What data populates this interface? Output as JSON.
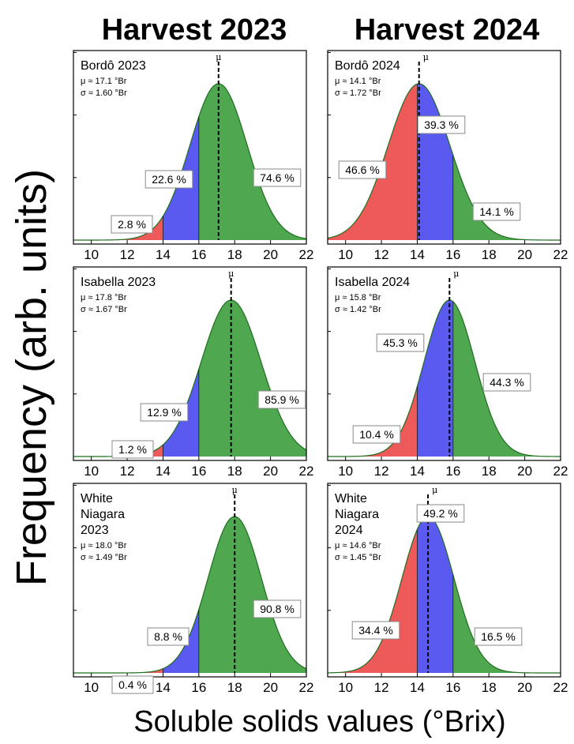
{
  "col_titles": [
    "Harvest 2023",
    "Harvest 2024"
  ],
  "ylabel": "Frequency (arb. units)",
  "xlabel": "Soluble solids values (°Brix)",
  "colors": {
    "low": "#ee5a5a",
    "mid": "#5a5af0",
    "high": "#4fa84f",
    "outline": "#1e6e1e"
  },
  "chart_data": [
    {
      "type": "area",
      "title": "Bordô 2023",
      "mu_text": "μ ≈ 17.1 °Br",
      "sigma_text": "σ ≈ 1.60 °Br",
      "mu": 17.1,
      "sigma": 1.6,
      "xlim": [
        9,
        22
      ],
      "xticks": [
        "10",
        "12",
        "14",
        "16",
        "18",
        "20",
        "22"
      ],
      "thresholds": [
        14,
        16
      ],
      "mu_label": "μ",
      "percentages": [
        "2.8 %",
        "22.6 %",
        "74.6 %"
      ]
    },
    {
      "type": "area",
      "title": "Bordô 2024",
      "mu_text": "μ ≈ 14.1 °Br",
      "sigma_text": "σ ≈ 1.72 °Br",
      "mu": 14.1,
      "sigma": 1.72,
      "xlim": [
        9,
        22
      ],
      "xticks": [
        "10",
        "12",
        "14",
        "16",
        "18",
        "20",
        "22"
      ],
      "thresholds": [
        14,
        16
      ],
      "mu_label": "μ",
      "percentages": [
        "46.6 %",
        "39.3 %",
        "14.1 %"
      ]
    },
    {
      "type": "area",
      "title": "Isabella 2023",
      "mu_text": "μ ≈ 17.8 °Br",
      "sigma_text": "σ ≈ 1.67 °Br",
      "mu": 17.8,
      "sigma": 1.67,
      "xlim": [
        9,
        22
      ],
      "xticks": [
        "10",
        "12",
        "14",
        "16",
        "18",
        "20",
        "22"
      ],
      "thresholds": [
        14,
        16
      ],
      "mu_label": "μ",
      "percentages": [
        "1.2 %",
        "12.9 %",
        "85.9 %"
      ]
    },
    {
      "type": "area",
      "title": "Isabella 2024",
      "mu_text": "μ ≈ 15.8 °Br",
      "sigma_text": "σ ≈ 1.42 °Br",
      "mu": 15.8,
      "sigma": 1.42,
      "xlim": [
        9,
        22
      ],
      "xticks": [
        "10",
        "12",
        "14",
        "16",
        "18",
        "20",
        "22"
      ],
      "thresholds": [
        14,
        16
      ],
      "mu_label": "μ",
      "percentages": [
        "10.4 %",
        "45.3 %",
        "44.3 %"
      ]
    },
    {
      "type": "area",
      "title": "White Niagara 2023",
      "title_lines": [
        "White",
        "Niagara",
        "2023"
      ],
      "mu_text": "μ ≈ 18.0 °Br",
      "sigma_text": "σ ≈ 1.49 °Br",
      "mu": 18.0,
      "sigma": 1.49,
      "xlim": [
        9,
        22
      ],
      "xticks": [
        "10",
        "12",
        "14",
        "16",
        "18",
        "20",
        "22"
      ],
      "thresholds": [
        14,
        16
      ],
      "mu_label": "μ",
      "percentages": [
        "0.4 %",
        "8.8 %",
        "90.8 %"
      ]
    },
    {
      "type": "area",
      "title": "White Niagara 2024",
      "title_lines": [
        "White",
        "Niagara",
        "2024"
      ],
      "mu_text": "μ ≈ 14.6 °Br",
      "sigma_text": "σ ≈ 1.45 °Br",
      "mu": 14.6,
      "sigma": 1.45,
      "xlim": [
        9,
        22
      ],
      "xticks": [
        "10",
        "12",
        "14",
        "16",
        "18",
        "20",
        "22"
      ],
      "thresholds": [
        14,
        16
      ],
      "mu_label": "μ",
      "percentages": [
        "34.4 %",
        "49.2 %",
        "16.5 %"
      ]
    }
  ]
}
